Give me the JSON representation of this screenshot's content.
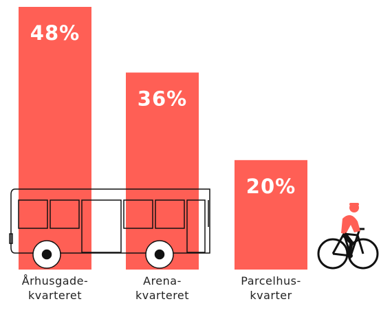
{
  "chart_data": {
    "type": "bar",
    "categories": [
      "Århusgade-\nkvarteret",
      "Arena-\nkvarteret",
      "Parcelhus-\nkvarter"
    ],
    "values": [
      48,
      36,
      20
    ],
    "value_labels": [
      "48%",
      "36%",
      "20%"
    ],
    "color": "#ff5f55"
  }
}
